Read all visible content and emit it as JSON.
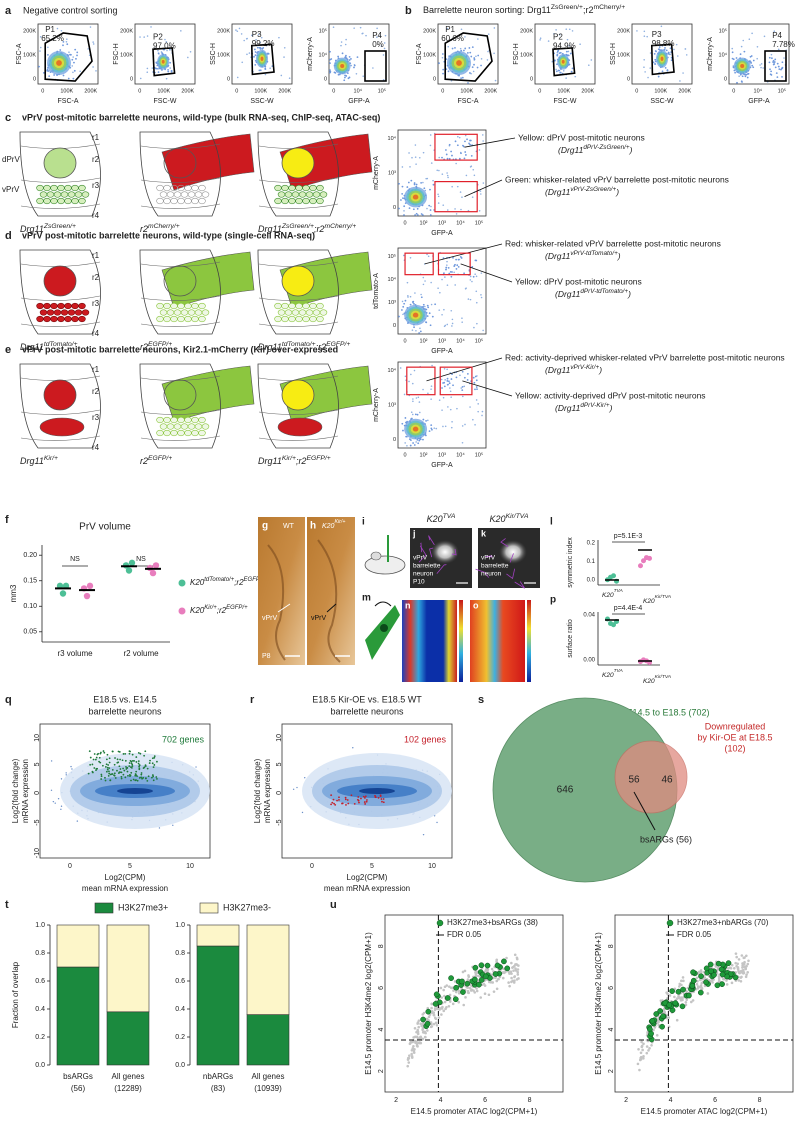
{
  "scatter_ticks": [
    "0",
    "100K",
    "200K"
  ],
  "log_ticks": [
    "0",
    "10⁴",
    "10⁵"
  ],
  "a": {
    "label": "a",
    "title": "Negative control sorting",
    "plots": [
      {
        "y": "FSC-A",
        "x": "FSC-A",
        "gate": "P1",
        "pct": "65.2%"
      },
      {
        "y": "FSC-H",
        "x": "FSC-W",
        "gate": "P2",
        "pct": "97.0%"
      },
      {
        "y": "SSC-H",
        "x": "SSC-W",
        "gate": "P3",
        "pct": "99.2%"
      },
      {
        "y": "mCherry-A",
        "x": "GFP-A",
        "gate": "P4",
        "pct": "0%"
      }
    ]
  },
  "b": {
    "label": "b",
    "title": [
      "Barrelette neuron sorting: Drg11",
      "ZsGreen/+",
      ";r2",
      "mCherry/+"
    ],
    "plots": [
      {
        "y": "FSC-A",
        "x": "FSC-A",
        "gate": "P1",
        "pct": "60.6%"
      },
      {
        "y": "FSC-H",
        "x": "FSC-W",
        "gate": "P2",
        "pct": "94.9%"
      },
      {
        "y": "SSC-H",
        "x": "SSC-W",
        "gate": "P3",
        "pct": "98.8%"
      },
      {
        "y": "mCherry-A",
        "x": "GFP-A",
        "gate": "P4",
        "pct": "7.78%"
      }
    ]
  },
  "c": {
    "label": "c",
    "title": "vPrV post-mitotic barrelette neurons, wild-type (bulk RNA-seq, ChIP-seq, ATAC-seq)",
    "regions": [
      "r1",
      "r2",
      "r3",
      "r4"
    ],
    "nuclei": [
      "dPrV",
      "vPrV"
    ],
    "genotypes": [
      [
        "Drg11",
        "ZsGreen/+"
      ],
      [
        "r2",
        "mCherry/+"
      ],
      [
        "Drg11",
        "ZsGreen/+",
        ";r2",
        "mCherry/+"
      ]
    ],
    "flow": {
      "y": "mCherry-A",
      "x": "GFP-A",
      "xticks": [
        "0",
        "10²",
        "10³",
        "10⁴",
        "10⁵"
      ],
      "yticks": [
        "0",
        "10³",
        "10⁴"
      ]
    },
    "notes": [
      {
        "text": "Yellow: dPrV post-mitotic neurons",
        "genotype": [
          "(Drg11",
          "dPrV-ZsGreen/+",
          ")"
        ]
      },
      {
        "text": "Green: whisker-related vPrV barrelette post-mitotic neurons",
        "genotype": [
          "(Drg11",
          "vPrV-ZsGreen/+",
          ")"
        ]
      }
    ]
  },
  "d": {
    "label": "d",
    "title": "vPrV post-mitotic barrelette neurons, wild-type (single-cell RNA-seq)",
    "regions": [
      "r1",
      "r2",
      "r3",
      "r4"
    ],
    "genotypes": [
      [
        "Drg11",
        "tdTomato/+"
      ],
      [
        "r2",
        "EGFP/+"
      ],
      [
        "Drg11",
        "tdTomato/+",
        ";r2",
        "EGFP/+"
      ]
    ],
    "flow": {
      "y": "tdTomato-A",
      "x": "GFP-A",
      "xticks": [
        "0",
        "10²",
        "10³",
        "10⁴",
        "10⁵"
      ],
      "yticks": [
        "0",
        "10³",
        "10⁴",
        "10⁵"
      ]
    },
    "notes": [
      {
        "text": "Red: whisker-related vPrV barrelette post-mitotic neurons",
        "genotype": [
          "(Drg11",
          "vPrV-tdTomato/+",
          ")"
        ]
      },
      {
        "text": "Yellow: dPrV post-mitotic neurons",
        "genotype": [
          "(Drg11",
          "dPrV-tdTomato/+",
          ")"
        ]
      }
    ]
  },
  "e": {
    "label": "e",
    "title": "vPrV post-mitotic barrelette neurons, Kir2.1-mCherry (Kir) over-expressed",
    "regions": [
      "r1",
      "r2",
      "r3",
      "r4"
    ],
    "genotypes": [
      [
        "Drg11",
        "Kir/+"
      ],
      [
        "r2",
        "EGFP/+"
      ],
      [
        "Drg11",
        "Kir/+",
        ";r2",
        "EGFP/+"
      ]
    ],
    "flow": {
      "y": "mCherry-A",
      "x": "GFP-A",
      "xticks": [
        "0",
        "10²",
        "10³",
        "10⁴",
        "10⁵"
      ],
      "yticks": [
        "0",
        "10³",
        "10⁴"
      ]
    },
    "notes": [
      {
        "text": "Red: activity-deprived whisker-related vPrV barrelette post-mitotic neurons",
        "genotype": [
          "(Drg11",
          "vPrV-Kir/+",
          ")"
        ]
      },
      {
        "text": "Yellow: activity-deprived dPrV post-mitotic neurons",
        "genotype": [
          "(Drg11",
          "dPrV-Kir/+",
          ")"
        ]
      }
    ]
  },
  "f": {
    "label": "f",
    "title": "PrV volume",
    "ylabel": "mm3",
    "ylim": [
      0.03,
      0.22
    ],
    "yticks": [
      0.05,
      {
        "value": 0.1,
        "label": "0.10"
      },
      0.15,
      {
        "value": 0.2,
        "label": "0.20"
      }
    ],
    "categories": [
      "r3 volume",
      "r2 volume"
    ],
    "tests": [
      "NS",
      "NS"
    ],
    "series": [
      {
        "name": [
          "K20",
          "tdTomato/+",
          ";r2",
          "EGFP/+"
        ],
        "color": "#4dbf96",
        "values": [
          [
            0.14,
            0.125,
            0.14
          ],
          [
            0.18,
            0.17,
            0.185
          ]
        ]
      },
      {
        "name": [
          "K20",
          "Kir/+",
          ";r2",
          "EGFP/+"
        ],
        "color": "#e87dbd",
        "values": [
          [
            0.135,
            0.12,
            0.14
          ],
          [
            0.175,
            0.165,
            0.18
          ]
        ]
      }
    ]
  },
  "g": {
    "label": "g",
    "tag": "WT",
    "region": "vPrV",
    "age": "P8"
  },
  "h": {
    "label": "h",
    "tag": [
      "K20",
      "Kir/+"
    ],
    "region": "vPrV"
  },
  "i": {
    "label": "i"
  },
  "j": {
    "label": "j",
    "title": [
      "K20",
      "TVA"
    ],
    "cell": [
      "vPrV",
      "barrelette",
      "neuron"
    ],
    "age": "P10"
  },
  "k": {
    "label": "k",
    "title": [
      "K20",
      "Kir/TVA"
    ],
    "cell": [
      "vPrV",
      "barrelette",
      "neuron"
    ]
  },
  "l": {
    "label": "l",
    "ylabel": "symmetric index",
    "yticks": [
      "0.0",
      "0.1",
      "0.2"
    ],
    "p": "p=5.1E-3",
    "groups": [
      [
        "K20",
        "TVA"
      ],
      [
        "K20",
        "Kir/TVA"
      ]
    ]
  },
  "m": {
    "label": "m"
  },
  "n": {
    "label": "n"
  },
  "o": {
    "label": "o"
  },
  "p": {
    "label": "p",
    "ylabel": "surface ratio",
    "yticks": [
      "0.00",
      "0.04"
    ],
    "p": "p=4.4E-4",
    "groups": [
      [
        "K20",
        "TVA"
      ],
      [
        "K20",
        "Kir/TVA"
      ]
    ]
  },
  "q": {
    "label": "q",
    "title": [
      "E18.5 vs. E14.5",
      "barrelette neurons"
    ],
    "count": "702 genes",
    "ylabel": [
      "Log2(fold change)",
      "mRNA expression"
    ],
    "xlabel": [
      "Log2(CPM)",
      "mean mRNA expression"
    ],
    "xticks": [
      "0",
      "5",
      "10"
    ],
    "yticks": [
      "10",
      "5",
      "0",
      "-5",
      "-10"
    ]
  },
  "r": {
    "label": "r",
    "title": [
      "E18.5 Kir-OE vs. E18.5 WT",
      "barrelette neurons"
    ],
    "count": "102 genes",
    "ylabel": [
      "Log2(fold change)",
      "mRNA expression"
    ],
    "xlabel": [
      "Log2(CPM)",
      "mean mRNA expression"
    ],
    "xticks": [
      "0",
      "5",
      "10"
    ],
    "yticks": [
      "10",
      "5",
      "0",
      "-5"
    ]
  },
  "s": {
    "label": "s",
    "up": "Upregulated from E14.5 to E18.5 (702)",
    "down": [
      "Downregulated",
      "by Kir-OE at E18.5",
      "(102)"
    ],
    "counts": [
      "646",
      "56",
      "46"
    ],
    "overlap": "bsARGs (56)"
  },
  "t": {
    "label": "t",
    "ylabel": "Fraction of overlap",
    "ylim": [
      0,
      1
    ],
    "yticks": [
      {
        "value": 0,
        "label": "0.0"
      },
      0.2,
      0.4,
      0.6,
      0.8,
      {
        "value": 1,
        "label": "1.0"
      }
    ],
    "categories": [
      [
        "bsARGs",
        "(56)"
      ],
      [
        "All genes",
        "(12289)"
      ],
      [
        "nbARGs",
        "(83)"
      ],
      [
        "All genes",
        "(10939)"
      ]
    ],
    "series": [
      {
        "name": "H3K27me3+",
        "color": "#1b8a3e",
        "values": [
          0.7,
          0.38,
          0.85,
          0.36
        ]
      },
      {
        "name": "H3K27me3-",
        "color": "#fdf6c9",
        "values": [
          0.3,
          0.62,
          0.15,
          0.64
        ]
      }
    ]
  },
  "u": {
    "label": "u",
    "xlabel": "E14.5 promoter ATAC log2(CPM+1)",
    "ylabel": "E14.5 promoter H3K4me2 log2(CPM+1)",
    "xticks": [
      "2",
      "4",
      "6",
      "8"
    ],
    "yticks": [
      "2",
      "4",
      "6",
      "8"
    ],
    "legends": [
      "H3K27me3+bsARGs (38)",
      "H3K27me3+nbARGs (70)"
    ],
    "fdr": "FDR 0.05"
  }
}
